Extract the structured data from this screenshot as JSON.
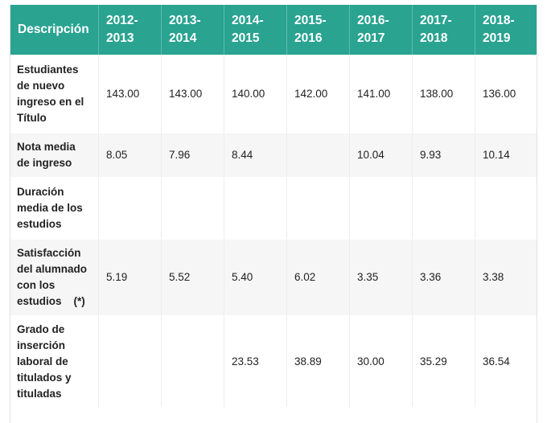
{
  "colors": {
    "header_bg": "#2aa391",
    "header_text": "#ffffff",
    "row_alt_bg": "#f6f6f6"
  },
  "table": {
    "header": {
      "first": "Descripción",
      "years": [
        [
          "2012-",
          "2013"
        ],
        [
          "2013-",
          "2014"
        ],
        [
          "2014-",
          "2015"
        ],
        [
          "2015-",
          "2016"
        ],
        [
          "2016-",
          "2017"
        ],
        [
          "2017-",
          "2018"
        ],
        [
          "2018-",
          "2019"
        ]
      ]
    },
    "rows": [
      {
        "label": [
          "Estudiantes",
          "de nuevo",
          "ingreso en el",
          "Título"
        ],
        "values": [
          "143.00",
          "143.00",
          "140.00",
          "142.00",
          "141.00",
          "138.00",
          "136.00"
        ]
      },
      {
        "label": [
          "Nota media",
          "de ingreso"
        ],
        "values": [
          "8.05",
          "7.96",
          "8.44",
          "",
          "10.04",
          "9.93",
          "10.14"
        ]
      },
      {
        "label": [
          "Duración",
          "media de los",
          "estudios"
        ],
        "values": [
          "",
          "",
          "",
          "",
          "",
          "",
          ""
        ]
      },
      {
        "label": [
          "Satisfacción",
          "del alumnado",
          "con los",
          "estudios    (*)"
        ],
        "values": [
          "5.19",
          "5.52",
          "5.40",
          "6.02",
          "3.35",
          "3.36",
          "3.38"
        ]
      },
      {
        "label": [
          "Grado de",
          "inserción",
          "laboral de",
          "titulados y",
          "tituladas"
        ],
        "values": [
          "",
          "",
          "23.53",
          "38.89",
          "30.00",
          "35.29",
          "36.54"
        ]
      }
    ]
  }
}
